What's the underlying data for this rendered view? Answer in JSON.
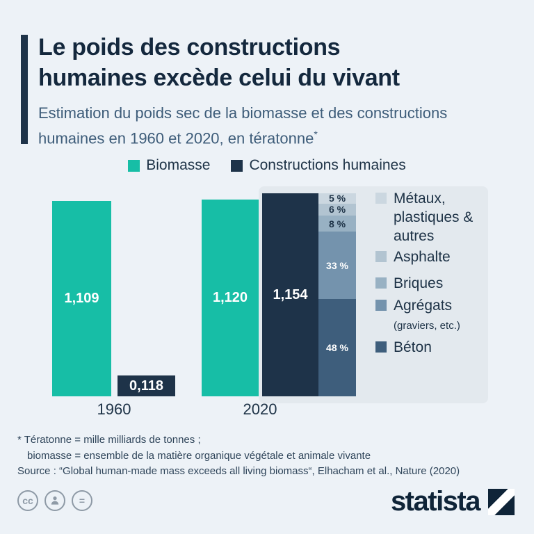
{
  "header": {
    "title_line1": "Le poids des constructions",
    "title_line2": "humaines excède celui du vivant",
    "subtitle_line1": "Estimation du poids sec de la biomasse et des constructions",
    "subtitle_line2": "humaines en 1960 et 2020, en tératonne",
    "footnote_marker": "*"
  },
  "legend": {
    "items": [
      {
        "label": "Biomasse",
        "color": "#17bea6"
      },
      {
        "label": "Constructions humaines",
        "color": "#1e3349"
      }
    ]
  },
  "chart_data": {
    "type": "bar",
    "unit": "tératonne",
    "categories": [
      "1960",
      "2020"
    ],
    "series": [
      {
        "name": "Biomasse",
        "color": "#17bea6",
        "values": [
          1.109,
          1.12
        ],
        "value_labels": [
          "1,109",
          "1,120"
        ]
      },
      {
        "name": "Constructions humaines",
        "color": "#1e3349",
        "values": [
          0.118,
          1.154
        ],
        "value_labels": [
          "0,118",
          "1,154"
        ]
      }
    ],
    "breakdown": {
      "applies_to": "Constructions humaines 2020",
      "segments": [
        {
          "label": "Métaux, plastiques & autres",
          "pct": 5,
          "pct_label": "5 %",
          "color": "#cbd7e0"
        },
        {
          "label": "Asphalte",
          "pct": 6,
          "pct_label": "6 %",
          "color": "#b2c4d1"
        },
        {
          "label": "Briques",
          "pct": 8,
          "pct_label": "8 %",
          "color": "#98b1c3"
        },
        {
          "label": "Agrégats (graviers, etc.)",
          "pct": 33,
          "pct_label": "33 %",
          "color": "#7493ad"
        },
        {
          "label": "Béton",
          "pct": 48,
          "pct_label": "48 %",
          "color": "#3e5e7c"
        }
      ]
    }
  },
  "breakdown_legend": {
    "items": [
      {
        "label": "Métaux, plastiques & autres",
        "sublabel": "",
        "color": "#cbd7e0"
      },
      {
        "label": "Asphalte",
        "sublabel": "",
        "color": "#b2c4d1"
      },
      {
        "label": "Briques",
        "sublabel": "",
        "color": "#98b1c3"
      },
      {
        "label": "Agrégats",
        "sublabel": "(graviers, etc.)",
        "color": "#7493ad"
      },
      {
        "label": "Béton",
        "sublabel": "",
        "color": "#3e5e7c"
      }
    ]
  },
  "footnotes": {
    "line1": "* Tératonne = mille milliards de tonnes ;",
    "line2": "biomasse = ensemble de la matière organique végétale et animale vivante",
    "source": "Source : “Global human-made mass exceeds all living biomass“, Elhacham et al., Nature (2020)"
  },
  "branding": {
    "logo_text": "statista"
  }
}
